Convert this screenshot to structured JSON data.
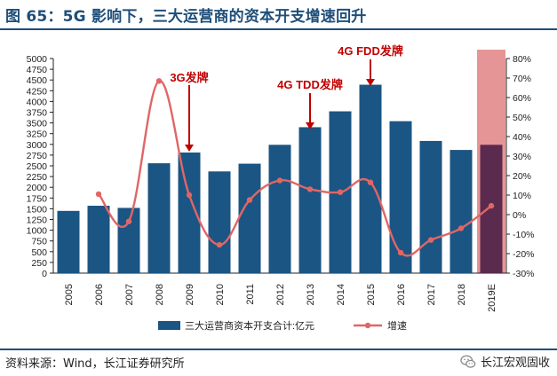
{
  "header": {
    "title": "图 65：5G 影响下，三大运营商的资本开支增速回升"
  },
  "footer": {
    "source": "资料来源：Wind，长江证券研究所",
    "watermark": "长江宏观固收",
    "watermark_icon": "wechat-icon"
  },
  "chart_data": {
    "type": "bar",
    "categories": [
      "2005",
      "2006",
      "2007",
      "2008",
      "2009",
      "2010",
      "2011",
      "2012",
      "2013",
      "2014",
      "2015",
      "2016",
      "2017",
      "2018",
      "2019E"
    ],
    "series": [
      {
        "name": "三大运营商资本开支合计:亿元",
        "type": "bar",
        "axis": "left",
        "values": [
          1450,
          1570,
          1520,
          2560,
          2810,
          2370,
          2550,
          2990,
          3400,
          3770,
          4390,
          3540,
          3080,
          2870,
          2990
        ]
      },
      {
        "name": "增速",
        "type": "line",
        "axis": "right",
        "values": [
          null,
          10.5,
          -3.5,
          68.5,
          10.0,
          -15.5,
          7.5,
          17.5,
          13.0,
          11.5,
          16.5,
          -19.5,
          -13.0,
          -7.0,
          4.5
        ]
      }
    ],
    "highlight_category": "2019E",
    "y_left": {
      "min": 0,
      "max": 5000,
      "ticks": [
        "0",
        "250",
        "500",
        "750",
        "1000",
        "1250",
        "1500",
        "1750",
        "2000",
        "2250",
        "2500",
        "2750",
        "3000",
        "3250",
        "3500",
        "3750",
        "4000",
        "4250",
        "4500",
        "4750",
        "5000"
      ]
    },
    "y_right": {
      "min": -30,
      "max": 80,
      "ticks": [
        "-30%",
        "-20%",
        "-10%",
        "0%",
        "10%",
        "20%",
        "30%",
        "40%",
        "50%",
        "60%",
        "70%",
        "80%"
      ]
    },
    "annotations": [
      {
        "text": "3G发牌",
        "category": "2009"
      },
      {
        "text": "4G TDD发牌",
        "category": "2013"
      },
      {
        "text": "4G FDD发牌",
        "category": "2015"
      }
    ],
    "legend": "bottom",
    "colors": {
      "bar": "#1b5583",
      "bar_highlight": "#5a2b4e",
      "highlight_band": "#e59596",
      "line": "#e06666",
      "annotation": "#c00000"
    }
  }
}
